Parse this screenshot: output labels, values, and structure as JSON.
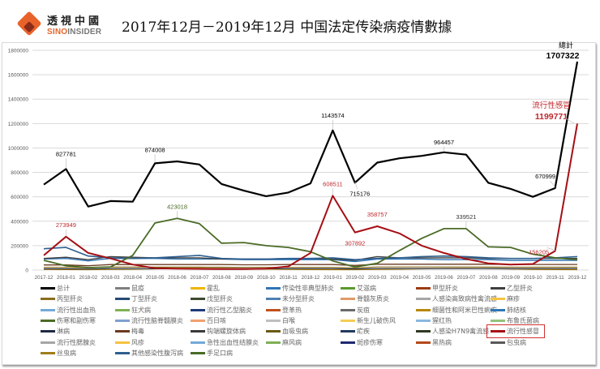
{
  "header": {
    "logo_cn": "透視中國",
    "logo_en_accent": "SINO",
    "logo_en_rest": "INSIDER",
    "title": "2017年12月－2019年12月  中国法定传染病疫情數據"
  },
  "colors": {
    "total": "#000000",
    "flu": "#a50f15",
    "hfmd": "#4a6b25",
    "highlight_box": "#d0312d",
    "gridline": "#d9d9d9"
  },
  "chart_data": {
    "type": "line",
    "title": "2017年12月－2019年12月 中国法定传染病疫情數據",
    "xlabel": "",
    "ylabel": "",
    "ylim": [
      0,
      1800000
    ],
    "yticks": [
      0,
      200000,
      400000,
      600000,
      800000,
      1000000,
      1200000,
      1400000,
      1600000,
      1800000
    ],
    "grid": true,
    "legend_position": "bottom",
    "categories": [
      "2017-12",
      "2018-01",
      "2018-02",
      "2018-03",
      "2018-04",
      "2018-05",
      "2018-06",
      "2018-07",
      "2018-08",
      "2018-09",
      "2018-10",
      "2018-11",
      "2018-12",
      "2019-01",
      "2019-02",
      "2019-03",
      "2019-04",
      "2019-05",
      "2019-06",
      "2019-07",
      "2019-08",
      "2019-09",
      "2019-10",
      "2019-11",
      "2019-12"
    ],
    "series": [
      {
        "name": "总计",
        "color": "#000000",
        "width": 2.2,
        "values": [
          700000,
          827781,
          520000,
          565000,
          560000,
          874008,
          890000,
          865000,
          705000,
          650000,
          605000,
          635000,
          710000,
          1143574,
          715176,
          880000,
          915000,
          935000,
          964457,
          945000,
          715000,
          665000,
          600000,
          670999,
          1707322
        ]
      },
      {
        "name": "流行性感冒",
        "color": "#a50f15",
        "width": 2,
        "values": [
          120000,
          273949,
          140000,
          95000,
          45000,
          15000,
          12000,
          10000,
          8000,
          8000,
          12000,
          30000,
          140000,
          608511,
          307892,
          358757,
          300000,
          200000,
          140000,
          90000,
          55000,
          45000,
          50000,
          156205,
          1199771
        ]
      },
      {
        "name": "手足口病",
        "color": "#4a6b25",
        "width": 1.8,
        "values": [
          80000,
          35000,
          20000,
          25000,
          120000,
          385000,
          423018,
          380000,
          220000,
          225000,
          200000,
          185000,
          150000,
          75000,
          25000,
          55000,
          160000,
          260000,
          339521,
          339521,
          190000,
          185000,
          130000,
          100000,
          85000
        ]
      },
      {
        "name": "其他感染性腹泻病",
        "color": "#2e5f8f",
        "width": 1.6,
        "values": [
          175000,
          185000,
          115000,
          100000,
          95000,
          100000,
          110000,
          120000,
          95000,
          90000,
          90000,
          95000,
          95000,
          100000,
          85000,
          95000,
          100000,
          110000,
          115000,
          110000,
          100000,
          95000,
          95000,
          100000,
          110000
        ]
      },
      {
        "name": "乙型肝炎",
        "color": "#404040",
        "width": 1.4,
        "values": [
          95000,
          105000,
          85000,
          110000,
          105000,
          100000,
          100000,
          100000,
          90000,
          90000,
          90000,
          95000,
          95000,
          90000,
          80000,
          110000,
          100000,
          100000,
          100000,
          100000,
          95000,
          95000,
          95000,
          95000,
          95000
        ]
      },
      {
        "name": "肺结核",
        "color": "#2f75b5",
        "width": 1.4,
        "values": [
          90000,
          95000,
          75000,
          95000,
          95000,
          95000,
          90000,
          90000,
          90000,
          85000,
          85000,
          85000,
          85000,
          85000,
          70000,
          90000,
          90000,
          90000,
          85000,
          85000,
          85000,
          80000,
          80000,
          80000,
          80000
        ]
      },
      {
        "name": "梅毒",
        "color": "#6b3a1f",
        "width": 1.3,
        "values": [
          42000,
          42000,
          35000,
          45000,
          45000,
          45000,
          45000,
          45000,
          45000,
          43000,
          43000,
          45000,
          45000,
          45000,
          38000,
          48000,
          48000,
          48000,
          48000,
          48000,
          48000,
          46000,
          46000,
          46000,
          46000
        ]
      },
      {
        "name": "丙型肝炎",
        "color": "#8a6d1f",
        "width": 1.2,
        "values": [
          22000,
          22000,
          18000,
          24000,
          24000,
          24000,
          24000,
          24000,
          23000,
          22000,
          22000,
          22000,
          22000,
          22000,
          18000,
          25000,
          25000,
          25000,
          25000,
          25000,
          24000,
          23000,
          23000,
          23000,
          23000
        ]
      },
      {
        "name": "淋病",
        "color": "#1f2a44",
        "width": 1.2,
        "values": [
          10000,
          10000,
          8000,
          11000,
          11000,
          11000,
          11000,
          11000,
          11000,
          11000,
          11000,
          11000,
          11000,
          11000,
          9000,
          12000,
          12000,
          12000,
          12000,
          12000,
          12000,
          11000,
          11000,
          11000,
          11000
        ]
      },
      {
        "name": "细菌性和阿米巴性痢疾",
        "color": "#b8860b",
        "width": 1.2,
        "values": [
          5000,
          4000,
          3000,
          5000,
          7000,
          10000,
          14000,
          15000,
          13000,
          10000,
          7000,
          5000,
          4000,
          3500,
          3000,
          5000,
          7000,
          10000,
          13000,
          14000,
          12000,
          9000,
          6000,
          4000,
          3000
        ]
      }
    ],
    "annotations": [
      {
        "label": "827781",
        "x": "2018-01",
        "series": "总计"
      },
      {
        "label": "874008",
        "x": "2018-05",
        "series": "总计"
      },
      {
        "label": "1143574",
        "x": "2019-01",
        "series": "总计"
      },
      {
        "label": "715176",
        "x": "2019-02",
        "series": "总计"
      },
      {
        "label": "964457",
        "x": "2019-06",
        "series": "总计"
      },
      {
        "label": "670999",
        "x": "2019-11",
        "series": "总计"
      },
      {
        "label": "總計 1707322",
        "x": "2019-12",
        "series": "总计"
      },
      {
        "label": "273949",
        "x": "2018-01",
        "series": "流行性感冒"
      },
      {
        "label": "608511",
        "x": "2019-01",
        "series": "流行性感冒"
      },
      {
        "label": "307892",
        "x": "2019-02",
        "series": "流行性感冒"
      },
      {
        "label": "358757",
        "x": "2019-03",
        "series": "流行性感冒"
      },
      {
        "label": "156205",
        "x": "2019-11",
        "series": "流行性感冒"
      },
      {
        "label": "流行性感冒 1199771",
        "x": "2019-12",
        "series": "流行性感冒"
      },
      {
        "label": "423018",
        "x": "2018-06",
        "series": "手足口病"
      },
      {
        "label": "339521",
        "x": "2019-07",
        "series": "手足口病"
      }
    ]
  },
  "labels": {
    "total_callout_title": "總計",
    "total_callout_value": "1707322",
    "flu_callout_title": "流行性感冒",
    "flu_callout_value": "1199771"
  },
  "legend": [
    {
      "label": "总计",
      "color": "#000000"
    },
    {
      "label": "鼠疫",
      "color": "#7f7f7f"
    },
    {
      "label": "霍乱",
      "color": "#f0b400"
    },
    {
      "label": "传染性非典型肺炎",
      "color": "#2f75b5"
    },
    {
      "label": "艾滋病",
      "color": "#5a9a2e"
    },
    {
      "label": "甲型肝炎",
      "color": "#9c3b0e"
    },
    {
      "label": "乙型肝炎",
      "color": "#404040"
    },
    {
      "label": "丙型肝炎",
      "color": "#8a6d1f"
    },
    {
      "label": "丁型肝炎",
      "color": "#264a73"
    },
    {
      "label": "戊型肝炎",
      "color": "#3f4a2e"
    },
    {
      "label": "未分型肝炎",
      "color": "#4f7fb0"
    },
    {
      "label": "脊髓灰质炎",
      "color": "#e09a6a"
    },
    {
      "label": "人感染高致病性禽流感",
      "color": "#a6a6a6"
    },
    {
      "label": "麻疹",
      "color": "#f5c242"
    },
    {
      "label": "流行性出血热",
      "color": "#74a9d8"
    },
    {
      "label": "狂犬病",
      "color": "#7fb055"
    },
    {
      "label": "流行性乙型脑炎",
      "color": "#1f3a7a"
    },
    {
      "label": "登革热",
      "color": "#c0501e"
    },
    {
      "label": "炭疽",
      "color": "#6a6a6a"
    },
    {
      "label": "细菌性和阿米巴性痢疾",
      "color": "#b8860b"
    },
    {
      "label": "肺结核",
      "color": "#2f75b5"
    },
    {
      "label": "伤寒和副伤寒",
      "color": "#4a6b25"
    },
    {
      "label": "流行性脑脊髓膜炎",
      "color": "#7f9fcf"
    },
    {
      "label": "百日咳",
      "color": "#f0a070"
    },
    {
      "label": "白喉",
      "color": "#bfbfbf"
    },
    {
      "label": "新生儿破伤风",
      "color": "#f5cd55"
    },
    {
      "label": "猩红热",
      "color": "#8ab8e0"
    },
    {
      "label": "布鲁氏菌病",
      "color": "#94c47a"
    },
    {
      "label": "淋病",
      "color": "#1f2a44"
    },
    {
      "label": "梅毒",
      "color": "#6b3a1f"
    },
    {
      "label": "钩端螺旋体病",
      "color": "#3a3a3a"
    },
    {
      "label": "血吸虫病",
      "color": "#6b5a10"
    },
    {
      "label": "疟疾",
      "color": "#233a5e"
    },
    {
      "label": "人感染H7N9禽流感",
      "color": "#2f3a22"
    },
    {
      "label": "流行性感冒",
      "color": "#a50f15"
    },
    {
      "label": "流行性腮腺炎",
      "color": "#a6a6a6"
    },
    {
      "label": "风疹",
      "color": "#f5c242"
    },
    {
      "label": "急性出血性结膜炎",
      "color": "#74a9d8"
    },
    {
      "label": "麻风病",
      "color": "#7fb055"
    },
    {
      "label": "斑疹伤寒",
      "color": "#1f2a6e"
    },
    {
      "label": "黑热病",
      "color": "#b5491a"
    },
    {
      "label": "包虫病",
      "color": "#595959"
    },
    {
      "label": "丝虫病",
      "color": "#a07c1a"
    },
    {
      "label": "其他感染性腹泻病",
      "color": "#2e5f8f"
    },
    {
      "label": "手足口病",
      "color": "#4a6b25"
    }
  ]
}
